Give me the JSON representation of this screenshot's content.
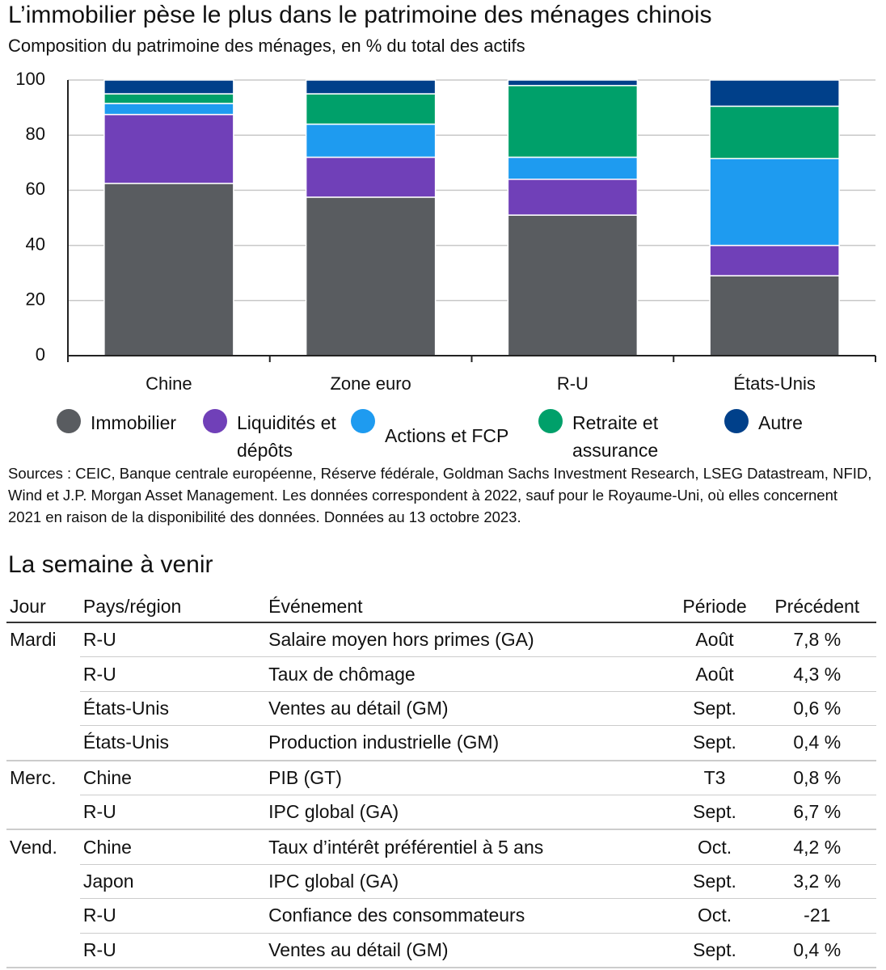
{
  "chart_data": {
    "type": "stacked_bar",
    "title": "L’immobilier pèse le plus dans le patrimoine des ménages chinois",
    "subtitle": "Composition du patrimoine des ménages, en % du total des actifs",
    "categories": [
      "Chine",
      "Zone euro",
      "R-U",
      "États-Unis"
    ],
    "series": [
      {
        "name": "Immobilier",
        "color": "#595c60",
        "values": [
          62.5,
          57.5,
          51,
          29
        ]
      },
      {
        "name": "Liquidités et dépôts",
        "color": "#7040b8",
        "values": [
          25,
          14.5,
          13,
          11
        ]
      },
      {
        "name": "Actions et FCP",
        "color": "#1e9bf0",
        "values": [
          4,
          12,
          8,
          31.5
        ]
      },
      {
        "name": "Retraite et assurance",
        "color": "#00a06a",
        "values": [
          3.5,
          11,
          26,
          19
        ]
      },
      {
        "name": "Autre",
        "color": "#00408a",
        "values": [
          5,
          5,
          2,
          9.5
        ]
      }
    ],
    "ylim": [
      0,
      100
    ],
    "yticks": [
      0,
      20,
      40,
      60,
      80,
      100
    ],
    "grid": true,
    "legend": "bottom"
  },
  "source": "Sources : CEIC, Banque centrale européenne, Réserve fédérale, Goldman Sachs Investment Research, LSEG Datastream, NFID, Wind et J.P. Morgan Asset Management. Les données correspondent à 2022, sauf pour le Royaume-Uni, où elles concernent 2021 en raison de la disponibilité des données. Données au 13 octobre 2023.",
  "table": {
    "title": "La semaine à venir",
    "headers": [
      "Jour",
      "Pays/région",
      "Événement",
      "Période",
      "Précédent"
    ],
    "groups": [
      {
        "day": "Mardi",
        "rows": [
          [
            "R-U",
            "Salaire moyen hors primes (GA)",
            "Août",
            "7,8 %"
          ],
          [
            "R-U",
            "Taux de chômage",
            "Août",
            "4,3 %"
          ],
          [
            "États-Unis",
            "Ventes au détail (GM)",
            "Sept.",
            "0,6 %"
          ],
          [
            "États-Unis",
            "Production industrielle (GM)",
            "Sept.",
            "0,4 %"
          ]
        ]
      },
      {
        "day": "Merc.",
        "rows": [
          [
            "Chine",
            "PIB (GT)",
            "T3",
            "0,8 %"
          ],
          [
            "R-U",
            "IPC global (GA)",
            "Sept.",
            "6,7 %"
          ]
        ]
      },
      {
        "day": "Vend.",
        "rows": [
          [
            "Chine",
            "Taux d’intérêt préférentiel à 5 ans",
            "Oct.",
            "4,2 %"
          ],
          [
            "Japon",
            "IPC global (GA)",
            "Sept.",
            "3,2 %"
          ],
          [
            "R-U",
            "Confiance des consommateurs",
            "Oct.",
            "-21"
          ],
          [
            "R-U",
            "Ventes au détail (GM)",
            "Sept.",
            "0,4 %"
          ]
        ]
      }
    ]
  }
}
